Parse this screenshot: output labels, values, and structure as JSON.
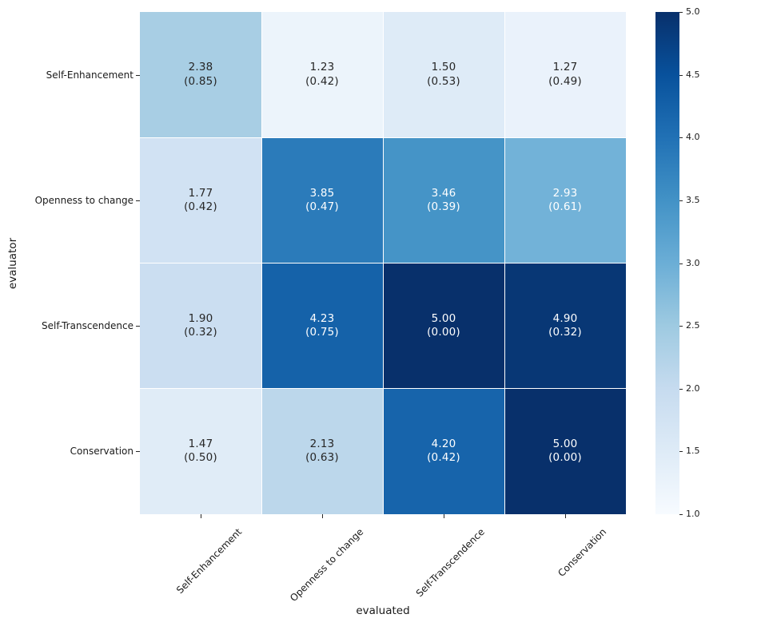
{
  "chart_data": {
    "type": "heatmap",
    "xlabel": "evaluated",
    "ylabel": "evaluator",
    "x_categories": [
      "Self-Enhancement",
      "Openness to change",
      "Self-Transcendence",
      "Conservation"
    ],
    "y_categories": [
      "Self-Enhancement",
      "Openness to change",
      "Self-Transcendence",
      "Conservation"
    ],
    "values": [
      [
        2.38,
        1.23,
        1.5,
        1.27
      ],
      [
        1.77,
        3.85,
        3.46,
        2.93
      ],
      [
        1.9,
        4.23,
        5.0,
        4.9
      ],
      [
        1.47,
        2.13,
        4.2,
        5.0
      ]
    ],
    "std": [
      [
        0.85,
        0.42,
        0.53,
        0.49
      ],
      [
        0.42,
        0.47,
        0.39,
        0.61
      ],
      [
        0.32,
        0.75,
        0.0,
        0.32
      ],
      [
        0.5,
        0.63,
        0.42,
        0.0
      ]
    ],
    "annotations": [
      [
        "2.38\n(0.85)",
        "1.23\n(0.42)",
        "1.50\n(0.53)",
        "1.27\n(0.49)"
      ],
      [
        "1.77\n(0.42)",
        "3.85\n(0.47)",
        "3.46\n(0.39)",
        "2.93\n(0.61)"
      ],
      [
        "1.90\n(0.32)",
        "4.23\n(0.75)",
        "5.00\n(0.00)",
        "4.90\n(0.32)"
      ],
      [
        "1.47\n(0.50)",
        "2.13\n(0.63)",
        "4.20\n(0.42)",
        "5.00\n(0.00)"
      ]
    ],
    "vmin": 1.0,
    "vmax": 5.0,
    "colorbar_tick_labels": [
      "5.0",
      "4.5",
      "4.0",
      "3.5",
      "3.0",
      "2.5",
      "2.0",
      "1.5",
      "1.0"
    ],
    "colormap_name": "Blues",
    "colormap_stops": [
      "#f7fbff",
      "#deebf7",
      "#c6dbef",
      "#9ecae1",
      "#6baed6",
      "#4292c6",
      "#2171b5",
      "#08519c",
      "#08306b"
    ],
    "annotation_color_dark": "#262626",
    "annotation_color_light": "#ffffff",
    "grid_line_color": "#ffffff",
    "legend_position": "right",
    "grid": false
  }
}
